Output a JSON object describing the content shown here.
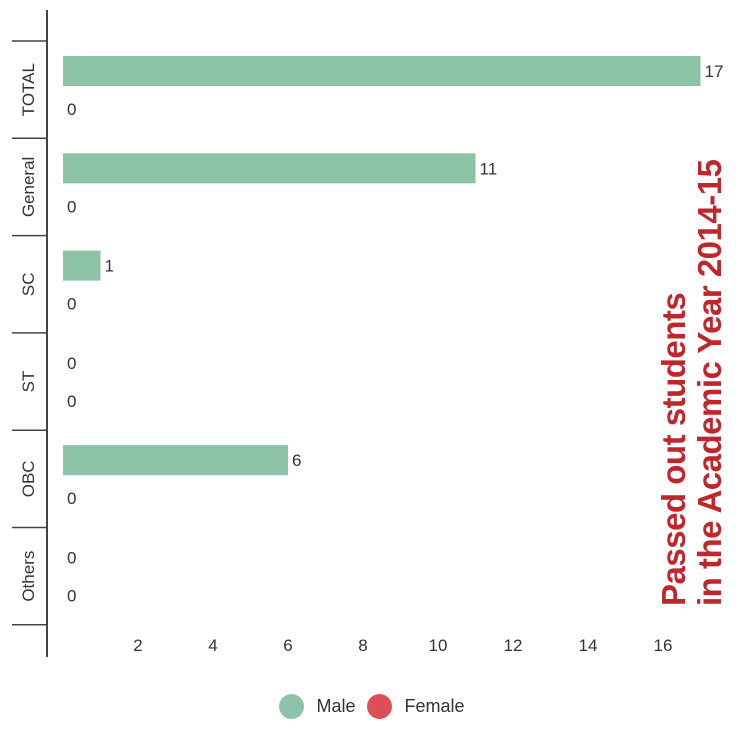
{
  "chart_data": {
    "type": "bar",
    "orientation": "horizontal",
    "title_lines": [
      "Passed out students",
      "in the Academic Year 2014-15"
    ],
    "title_color": "#c0272d",
    "categories": [
      "TOTAL",
      "General",
      "SC",
      "ST",
      "OBC",
      "Others"
    ],
    "series": [
      {
        "name": "Male",
        "color": "#8cc2a5",
        "values": [
          17,
          11,
          1,
          0,
          6,
          0
        ],
        "labels": [
          "17",
          "11",
          "1",
          "0",
          "6",
          "0"
        ]
      },
      {
        "name": "Female",
        "color": "#de4e56",
        "values": [
          0,
          0,
          0,
          0,
          0,
          0
        ],
        "labels": [
          "0",
          "0",
          "0",
          "0",
          "0",
          "0"
        ]
      }
    ],
    "x_ticks": [
      2,
      4,
      6,
      8,
      10,
      12,
      14,
      16
    ],
    "x_tick_labels": [
      "2",
      "4",
      "6",
      "8",
      "10",
      "12",
      "14",
      "16"
    ],
    "xlim": [
      0,
      17
    ],
    "grid": false,
    "legend_position": "bottom"
  }
}
